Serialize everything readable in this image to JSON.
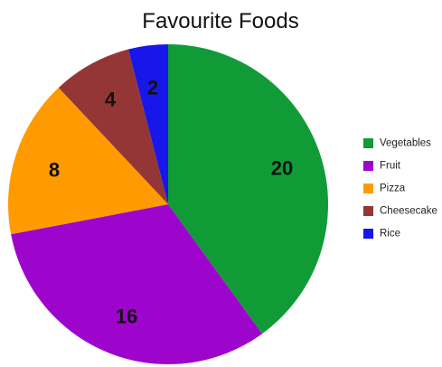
{
  "chart_data": {
    "type": "pie",
    "title": "Favourite Foods",
    "labels": [
      "Vegetables",
      "Fruit",
      "Pizza",
      "Cheesecake",
      "Rice"
    ],
    "values": [
      20,
      16,
      8,
      4,
      2
    ],
    "data_labels": [
      "20",
      "16",
      "8",
      "4",
      "2"
    ],
    "colors": [
      "#109b37",
      "#9d05cd",
      "#ff9a00",
      "#953636",
      "#1717ea"
    ],
    "start_angle_degrees": 0,
    "direction": "clockwise",
    "legend_placement": "right"
  }
}
